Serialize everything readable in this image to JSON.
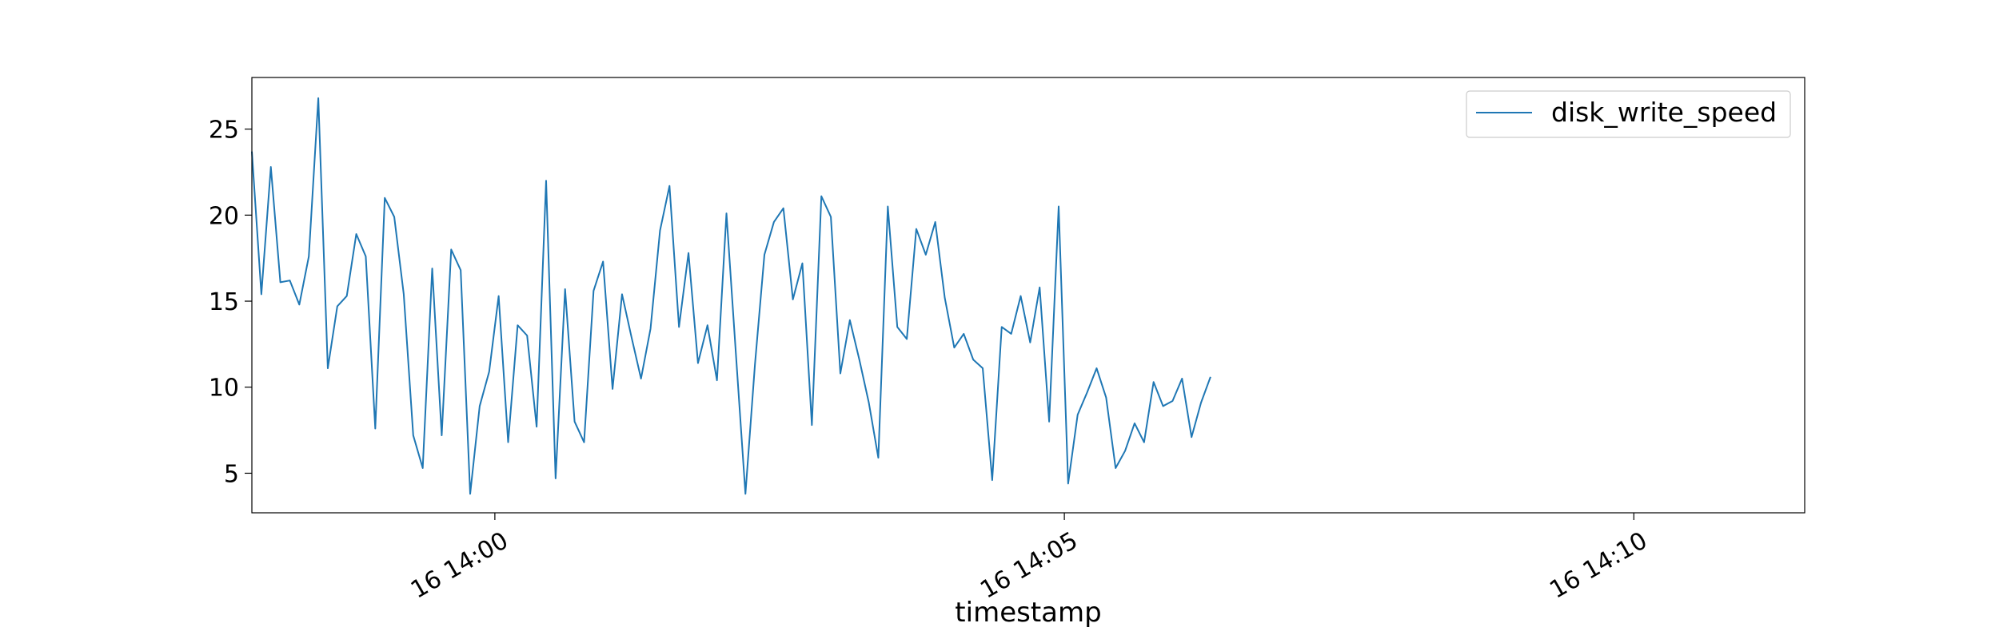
{
  "chart_data": {
    "type": "line",
    "title": "",
    "xlabel": "timestamp",
    "ylabel": "",
    "x_start": "16 13:57:52",
    "x_step_seconds": 5,
    "xlim": [
      "16 13:57:52",
      "16 14:11:30"
    ],
    "ylim": [
      2.7,
      28.0
    ],
    "x_ticks": [
      {
        "label": "16 14:00",
        "value": "16 14:00:00"
      },
      {
        "label": "16 14:05",
        "value": "16 14:05:00"
      },
      {
        "label": "16 14:10",
        "value": "16 14:10:00"
      }
    ],
    "y_ticks": [
      5,
      10,
      15,
      20,
      25
    ],
    "grid": false,
    "legend": {
      "placement": "top-right"
    },
    "series": [
      {
        "name": "disk_write_speed",
        "color": "#1f77b4",
        "values": [
          23.7,
          15.4,
          22.8,
          16.1,
          16.2,
          14.8,
          17.6,
          26.8,
          11.1,
          14.7,
          15.3,
          18.9,
          17.6,
          7.6,
          21.0,
          19.9,
          15.4,
          7.2,
          5.3,
          16.9,
          7.2,
          18.0,
          16.8,
          3.8,
          8.9,
          10.9,
          15.3,
          6.8,
          13.6,
          13.0,
          7.7,
          22.0,
          4.7,
          15.7,
          8.0,
          6.8,
          15.6,
          17.3,
          9.9,
          15.4,
          12.9,
          10.5,
          13.4,
          19.1,
          21.7,
          13.5,
          17.8,
          11.4,
          13.6,
          10.4,
          20.1,
          11.9,
          3.8,
          11.3,
          17.7,
          19.6,
          20.4,
          15.1,
          17.2,
          7.8,
          21.1,
          19.9,
          10.8,
          13.9,
          11.6,
          9.1,
          5.9,
          20.5,
          13.5,
          12.8,
          19.2,
          17.7,
          19.6,
          15.2,
          12.3,
          13.1,
          11.6,
          11.1,
          4.6,
          13.5,
          13.1,
          15.3,
          12.6,
          15.8,
          8.0,
          20.5,
          4.4,
          8.4,
          9.7,
          11.1,
          9.4,
          5.3,
          6.3,
          7.9,
          6.8,
          10.3,
          8.9,
          9.2,
          10.5,
          7.1,
          9.1,
          10.6
        ]
      }
    ]
  }
}
